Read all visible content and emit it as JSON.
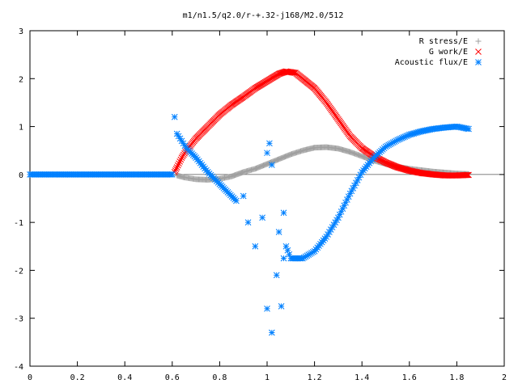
{
  "chart_data": {
    "type": "scatter",
    "title": "m1/n1.5/q2.0/r-+.32-j168/M2.0/512",
    "xlabel": "",
    "ylabel": "",
    "xlim": [
      0,
      2
    ],
    "ylim": [
      -4,
      3
    ],
    "x_ticks": [
      0,
      0.2,
      0.4,
      0.6,
      0.8,
      1,
      1.2,
      1.4,
      1.6,
      1.8,
      2
    ],
    "x_tick_labels": [
      "0",
      "0.2",
      "0.4",
      "0.6",
      "0.8",
      "1",
      "1.2",
      "1.4",
      "1.6",
      "1.8",
      "2"
    ],
    "y_ticks": [
      -4,
      -3,
      -2,
      -1,
      0,
      1,
      2,
      3
    ],
    "y_tick_labels": [
      "-4",
      "-3",
      "-2",
      "-1",
      "0",
      "1",
      "2",
      "3"
    ],
    "grid": false,
    "legend_position": "top-right",
    "series": [
      {
        "name": "R stress/E",
        "marker": "plus",
        "color": "#a0a0a0",
        "points": [
          [
            0.62,
            -0.02
          ],
          [
            0.65,
            -0.06
          ],
          [
            0.7,
            -0.1
          ],
          [
            0.75,
            -0.11
          ],
          [
            0.8,
            -0.09
          ],
          [
            0.85,
            -0.04
          ],
          [
            0.9,
            0.05
          ],
          [
            0.95,
            0.12
          ],
          [
            1.0,
            0.22
          ],
          [
            1.05,
            0.32
          ],
          [
            1.1,
            0.42
          ],
          [
            1.15,
            0.5
          ],
          [
            1.2,
            0.56
          ],
          [
            1.25,
            0.57
          ],
          [
            1.3,
            0.54
          ],
          [
            1.35,
            0.47
          ],
          [
            1.4,
            0.38
          ],
          [
            1.45,
            0.29
          ],
          [
            1.5,
            0.22
          ],
          [
            1.55,
            0.16
          ],
          [
            1.6,
            0.12
          ],
          [
            1.65,
            0.09
          ],
          [
            1.7,
            0.06
          ],
          [
            1.75,
            0.04
          ],
          [
            1.8,
            0.02
          ],
          [
            1.85,
            0.01
          ]
        ]
      },
      {
        "name": "G work/E",
        "marker": "cross",
        "color": "#ff0000",
        "points": [
          [
            0.61,
            0.05
          ],
          [
            0.62,
            0.15
          ],
          [
            0.64,
            0.35
          ],
          [
            0.66,
            0.5
          ],
          [
            0.7,
            0.75
          ],
          [
            0.75,
            1.0
          ],
          [
            0.8,
            1.25
          ],
          [
            0.85,
            1.45
          ],
          [
            0.9,
            1.62
          ],
          [
            0.95,
            1.8
          ],
          [
            1.0,
            1.95
          ],
          [
            1.05,
            2.1
          ],
          [
            1.08,
            2.15
          ],
          [
            1.12,
            2.12
          ],
          [
            1.15,
            2.0
          ],
          [
            1.2,
            1.8
          ],
          [
            1.25,
            1.5
          ],
          [
            1.3,
            1.15
          ],
          [
            1.35,
            0.8
          ],
          [
            1.4,
            0.55
          ],
          [
            1.45,
            0.38
          ],
          [
            1.5,
            0.25
          ],
          [
            1.55,
            0.15
          ],
          [
            1.6,
            0.08
          ],
          [
            1.65,
            0.03
          ],
          [
            1.7,
            0.0
          ],
          [
            1.75,
            -0.02
          ],
          [
            1.8,
            -0.02
          ],
          [
            1.85,
            -0.01
          ]
        ]
      },
      {
        "name": "Acoustic flux/E",
        "marker": "star",
        "color": "#0080ff",
        "points": [
          [
            0.0,
            0.0
          ],
          [
            0.1,
            0.0
          ],
          [
            0.2,
            0.0
          ],
          [
            0.3,
            0.0
          ],
          [
            0.4,
            0.0
          ],
          [
            0.5,
            0.0
          ],
          [
            0.6,
            0.0
          ],
          [
            0.61,
            1.2
          ],
          [
            0.62,
            0.85
          ],
          [
            0.64,
            0.7
          ],
          [
            0.66,
            0.55
          ],
          [
            0.7,
            0.35
          ],
          [
            0.75,
            0.05
          ],
          [
            0.8,
            -0.2
          ],
          [
            0.84,
            -0.4
          ],
          [
            0.87,
            -0.55
          ],
          [
            0.9,
            -0.45
          ],
          [
            0.92,
            -1.0
          ],
          [
            0.95,
            -1.5
          ],
          [
            0.98,
            -0.9
          ],
          [
            1.0,
            -2.8
          ],
          [
            1.0,
            0.45
          ],
          [
            1.01,
            0.65
          ],
          [
            1.02,
            -3.3
          ],
          [
            1.02,
            0.2
          ],
          [
            1.04,
            -2.1
          ],
          [
            1.05,
            -1.2
          ],
          [
            1.06,
            -2.75
          ],
          [
            1.07,
            -0.8
          ],
          [
            1.07,
            -1.75
          ],
          [
            1.08,
            -1.5
          ],
          [
            1.1,
            -1.75
          ],
          [
            1.15,
            -1.75
          ],
          [
            1.2,
            -1.6
          ],
          [
            1.25,
            -1.3
          ],
          [
            1.3,
            -0.9
          ],
          [
            1.35,
            -0.4
          ],
          [
            1.4,
            0.05
          ],
          [
            1.45,
            0.35
          ],
          [
            1.5,
            0.58
          ],
          [
            1.55,
            0.72
          ],
          [
            1.6,
            0.83
          ],
          [
            1.65,
            0.9
          ],
          [
            1.7,
            0.95
          ],
          [
            1.75,
            0.98
          ],
          [
            1.8,
            1.0
          ],
          [
            1.85,
            0.95
          ]
        ]
      }
    ]
  }
}
